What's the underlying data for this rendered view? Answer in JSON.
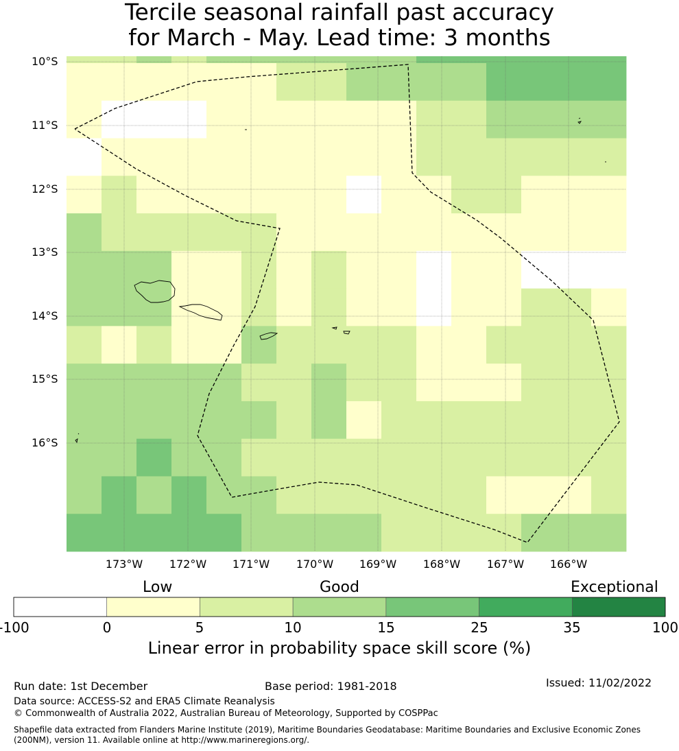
{
  "title_line1": "Tercile seasonal rainfall past accuracy",
  "title_line2": "for March - May. Lead time: 3 months",
  "chart_data": {
    "type": "heatmap",
    "description_metric": "Linear error in probability space skill score (%)",
    "lat_labels": [
      "10°S",
      "11°S",
      "12°S",
      "13°S",
      "14°S",
      "15°S",
      "16°S"
    ],
    "lon_labels": [
      "173°W",
      "172°W",
      "171°W",
      "170°W",
      "169°W",
      "168°W",
      "167°W",
      "166°W"
    ],
    "lon_range": [
      -173.9,
      -165.1
    ],
    "lat_range": [
      -17.8,
      -10.0
    ],
    "bins": [
      "<0",
      "0-5",
      "5-10",
      "10-15",
      "15-25",
      "25-35",
      ">35"
    ],
    "bin_colors": [
      "#ffffff",
      "#ffffcc",
      "#d9f0a3",
      "#addd8e",
      "#78c679",
      "#41ab5d",
      "#238443"
    ],
    "grid_bins": [
      [
        2,
        2,
        3,
        2,
        3,
        3,
        3,
        3,
        3,
        3,
        4,
        4,
        4,
        4,
        4,
        4
      ],
      [
        1,
        1,
        1,
        1,
        1,
        1,
        2,
        2,
        3,
        3,
        3,
        3,
        4,
        4,
        4,
        4
      ],
      [
        1,
        0,
        0,
        0,
        1,
        1,
        1,
        1,
        1,
        1,
        2,
        2,
        3,
        3,
        3,
        3
      ],
      [
        0,
        1,
        1,
        1,
        1,
        1,
        1,
        1,
        1,
        1,
        2,
        2,
        2,
        2,
        2,
        2
      ],
      [
        1,
        2,
        1,
        1,
        1,
        1,
        1,
        1,
        0,
        1,
        1,
        2,
        2,
        1,
        1,
        1
      ],
      [
        3,
        2,
        2,
        2,
        2,
        2,
        1,
        1,
        1,
        1,
        1,
        1,
        1,
        1,
        1,
        1
      ],
      [
        3,
        3,
        3,
        1,
        1,
        2,
        1,
        2,
        1,
        1,
        0,
        1,
        1,
        0,
        0,
        0
      ],
      [
        3,
        3,
        3,
        1,
        1,
        2,
        1,
        2,
        1,
        1,
        0,
        1,
        1,
        2,
        2,
        1
      ],
      [
        2,
        1,
        2,
        1,
        1,
        3,
        2,
        2,
        2,
        2,
        1,
        1,
        2,
        2,
        2,
        2
      ],
      [
        3,
        3,
        3,
        3,
        3,
        2,
        2,
        3,
        2,
        2,
        1,
        1,
        1,
        2,
        2,
        2
      ],
      [
        3,
        3,
        3,
        3,
        3,
        3,
        2,
        3,
        1,
        2,
        2,
        2,
        2,
        2,
        2,
        2
      ],
      [
        3,
        3,
        4,
        3,
        3,
        2,
        2,
        2,
        2,
        2,
        2,
        2,
        2,
        2,
        2,
        2
      ],
      [
        3,
        4,
        3,
        4,
        3,
        3,
        2,
        2,
        2,
        2,
        2,
        2,
        1,
        1,
        1,
        2
      ],
      [
        4,
        4,
        4,
        4,
        4,
        3,
        3,
        3,
        3,
        2,
        2,
        2,
        2,
        3,
        3,
        3
      ]
    ]
  },
  "colorbar": {
    "category_low": "Low",
    "category_good": "Good",
    "category_exceptional": "Exceptional",
    "ticks": [
      "-100",
      "0",
      "5",
      "10",
      "15",
      "25",
      "35",
      "100"
    ],
    "label": "Linear error in probability space skill score (%)"
  },
  "footer": {
    "run_date": "Run date: 1st December",
    "base_period": "Base period: 1981-2018",
    "issued": "Issued: 11/02/2022",
    "data_source": "Data source: ACCESS-S2 and ERA5 Climate Reanalysis",
    "copyright": "© Commonwealth of Australia 2022, Australian Bureau of Meteorology, Supported by COSPPac",
    "shapefile_line1": "Shapefile data extracted from Flanders Marine Institute (2019), Maritime Boundaries Geodatabase: Maritime Boundaries and Exclusive Economic Zones",
    "shapefile_line2": "(200NM), version 11. Available online at http://www.marineregions.org/."
  }
}
